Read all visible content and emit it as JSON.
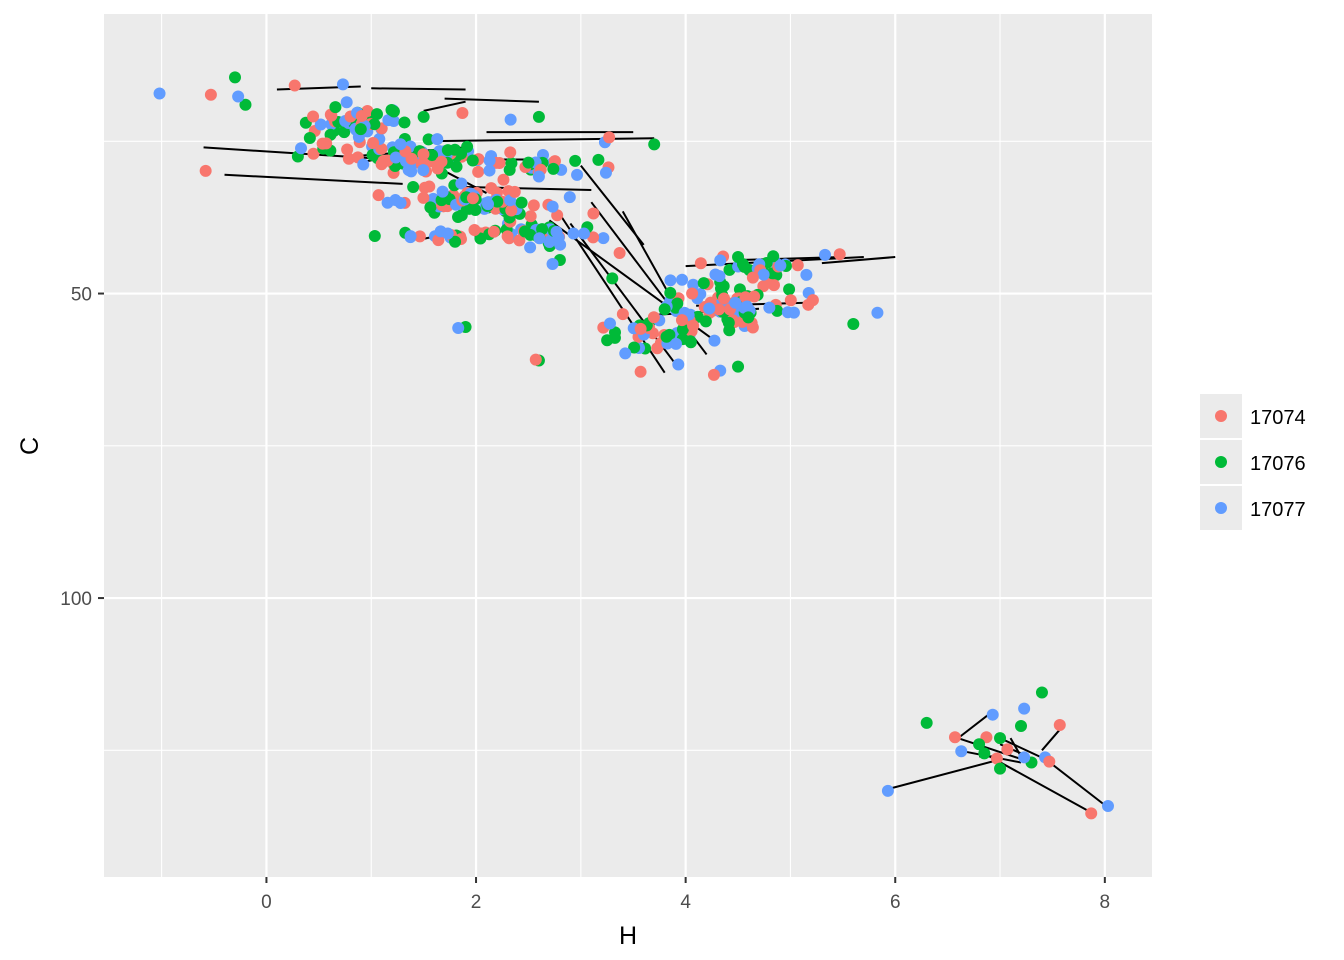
{
  "chart_data": {
    "type": "scatter",
    "title": "",
    "xlabel": "H",
    "ylabel": "C",
    "x_reversed": true,
    "y_reversed": true,
    "xlim": [
      -1.55,
      8.45
    ],
    "ylim": [
      145.8,
      4.1
    ],
    "x_ticks": [
      8,
      6,
      4,
      2,
      0
    ],
    "x_tick_labels": [
      "8",
      "6",
      "4",
      "2",
      "0"
    ],
    "y_ticks": [
      50,
      100
    ],
    "y_tick_labels": [
      "50",
      "100"
    ],
    "grid": true,
    "legend_position": "right",
    "colors": {
      "17074": "#f8766d",
      "17076": "#00ba38",
      "17077": "#619cff",
      "panel": "#ebebeb",
      "grid": "#ffffff",
      "line": "#000000"
    },
    "series": [
      {
        "name": "17074",
        "color": "#f8766d"
      },
      {
        "name": "17076",
        "color": "#00ba38"
      },
      {
        "name": "17077",
        "color": "#619cff"
      }
    ],
    "points": [],
    "lines": [
      [
        [
          5.5,
          44
        ],
        [
          4.5,
          44.5
        ]
      ],
      [
        [
          5.7,
          44
        ],
        [
          4.0,
          45.5
        ]
      ],
      [
        [
          3.7,
          24.5
        ],
        [
          1.5,
          25
        ]
      ],
      [
        [
          3.5,
          23.5
        ],
        [
          2.1,
          23.5
        ]
      ],
      [
        [
          2.6,
          18.5
        ],
        [
          1.7,
          18
        ]
      ],
      [
        [
          1.9,
          18.5
        ],
        [
          1.5,
          20
        ]
      ],
      [
        [
          0.9,
          16
        ],
        [
          0.1,
          16.5
        ]
      ],
      [
        [
          1.9,
          16.5
        ],
        [
          1.0,
          16.3
        ]
      ],
      [
        [
          1.2,
          28
        ],
        [
          -0.6,
          26
        ]
      ],
      [
        [
          1.3,
          32
        ],
        [
          -0.4,
          30.5
        ]
      ],
      [
        [
          5.2,
          51.5
        ],
        [
          4.1,
          52
        ]
      ],
      [
        [
          4.7,
          52.5
        ],
        [
          3.7,
          53.5
        ]
      ],
      [
        [
          3.1,
          33
        ],
        [
          1.9,
          32.5
        ]
      ],
      [
        [
          2.7,
          38
        ],
        [
          4.3,
          58
        ]
      ],
      [
        [
          2.9,
          38.5
        ],
        [
          3.9,
          61.5
        ]
      ],
      [
        [
          2.8,
          37
        ],
        [
          3.8,
          63
        ]
      ],
      [
        [
          3.1,
          35
        ],
        [
          4.2,
          60
        ]
      ],
      [
        [
          3.4,
          36.5
        ],
        [
          4.0,
          55
        ]
      ],
      [
        [
          1.8,
          40
        ],
        [
          1.5,
          41
        ]
      ],
      [
        [
          3.0,
          29
        ],
        [
          3.6,
          42
        ]
      ],
      [
        [
          2.1,
          33.5
        ],
        [
          1.6,
          29
        ]
      ],
      [
        [
          2.5,
          28
        ],
        [
          1.8,
          28
        ]
      ],
      [
        [
          1.9,
          26
        ],
        [
          0.8,
          27.5
        ]
      ],
      [
        [
          1.3,
          27
        ],
        [
          0.9,
          28.5
        ]
      ],
      [
        [
          8.0,
          134
        ],
        [
          7.4,
          126
        ]
      ],
      [
        [
          7.9,
          135.5
        ],
        [
          6.9,
          126
        ]
      ],
      [
        [
          7.6,
          121
        ],
        [
          7.4,
          125
        ]
      ],
      [
        [
          7.0,
          126.5
        ],
        [
          5.9,
          131.5
        ]
      ],
      [
        [
          6.6,
          125
        ],
        [
          7.2,
          127
        ]
      ],
      [
        [
          6.9,
          119
        ],
        [
          6.6,
          123
        ]
      ],
      [
        [
          7.3,
          127
        ],
        [
          6.6,
          123
        ]
      ],
      [
        [
          7.0,
          123
        ],
        [
          7.5,
          127
        ]
      ],
      [
        [
          7.2,
          126
        ],
        [
          7.1,
          123
        ]
      ],
      [
        [
          6.8,
          126
        ],
        [
          7.0,
          126
        ]
      ],
      [
        [
          7.2,
          125.5
        ],
        [
          7.0,
          124
        ]
      ],
      [
        [
          6.0,
          44
        ],
        [
          5.3,
          45
        ]
      ]
    ]
  },
  "legend": {
    "items": [
      {
        "label": "17074",
        "color": "#f8766d"
      },
      {
        "label": "17076",
        "color": "#00ba38"
      },
      {
        "label": "17077",
        "color": "#619cff"
      }
    ]
  }
}
